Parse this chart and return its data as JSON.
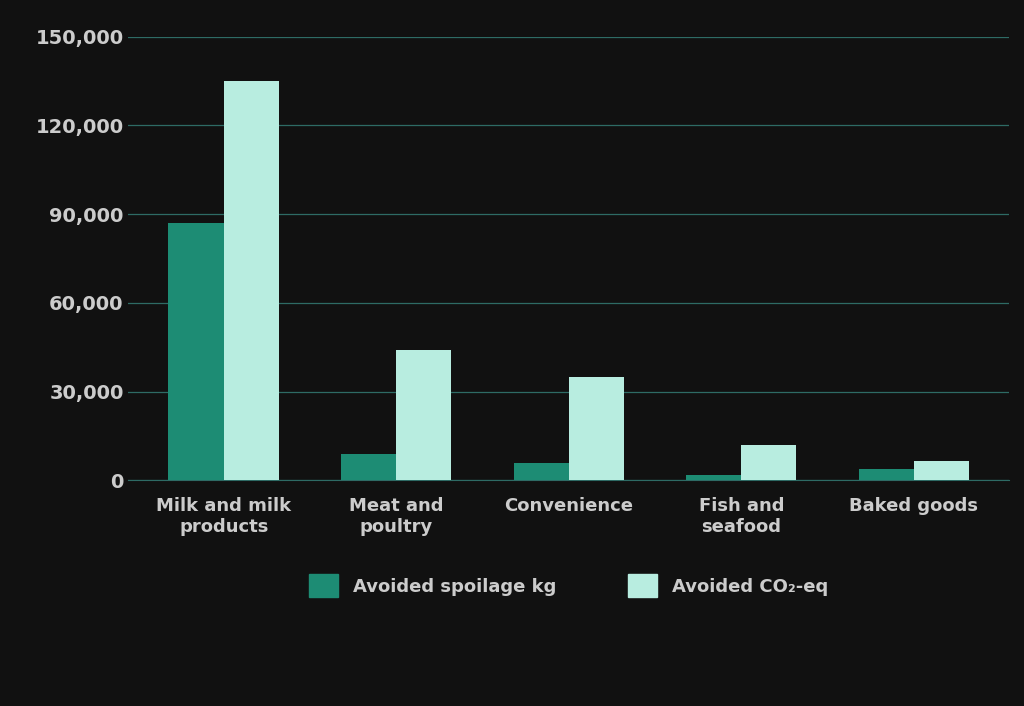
{
  "categories": [
    "Milk and milk\nproducts",
    "Meat and\npoultry",
    "Convenience",
    "Fish and\nseafood",
    "Baked goods"
  ],
  "avoided_spoilage_kg": [
    87000,
    9000,
    6000,
    2000,
    4000
  ],
  "avoided_co2_eq": [
    135000,
    44000,
    35000,
    12000,
    6500
  ],
  "color_spoilage": "#1d8c74",
  "color_co2": "#b8ede0",
  "ylim": [
    0,
    150000
  ],
  "yticks": [
    0,
    30000,
    60000,
    90000,
    120000,
    150000
  ],
  "ytick_labels": [
    "0",
    "30,000",
    "60,000",
    "90,000",
    "120,000",
    "150,000"
  ],
  "legend_spoilage": "Avoided spoilage kg",
  "legend_co2": "Avoided CO₂-eq",
  "background_color": "#111111",
  "grid_color": "#2e6b65",
  "bar_width": 0.32,
  "font_color": "#cccccc",
  "xtick_font_color": "#333333",
  "ytick_font_color": "#555555"
}
